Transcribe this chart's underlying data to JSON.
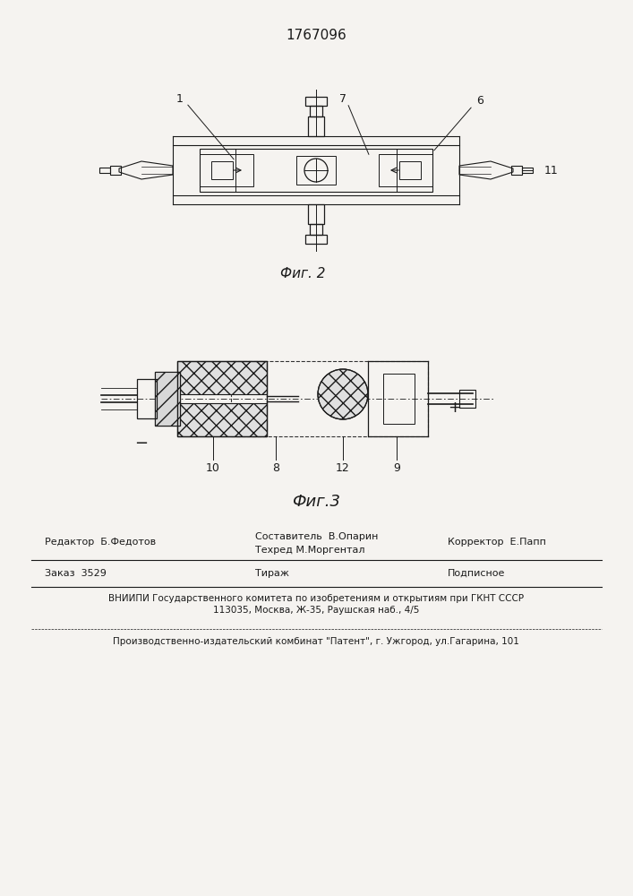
{
  "title": "1767096",
  "fig2_label": "Фиг. 2",
  "fig3_label": "Фиг.3",
  "bg_color": "#f5f3f0",
  "line_color": "#1a1a1a",
  "footer_line1_left": "Редактор  Б.Федотов",
  "footer_line1_mid_top": "Составитель  В.Опарин",
  "footer_line1_mid": "Техред М.Моргентал",
  "footer_line1_right": "Корректор  Е.Папп",
  "footer_line2_left": "Заказ  3529",
  "footer_line2_mid": "Тираж",
  "footer_line2_right": "Подписное",
  "footer_line3": "ВНИИПИ Государственного комитета по изобретениям и открытиям при ГКНТ СССР",
  "footer_line4": "113035, Москва, Ж-35, Раушская наб., 4/5",
  "footer_line5": "Производственно-издательский комбинат \"Патент\", г. Ужгород, ул.Гагарина, 101"
}
